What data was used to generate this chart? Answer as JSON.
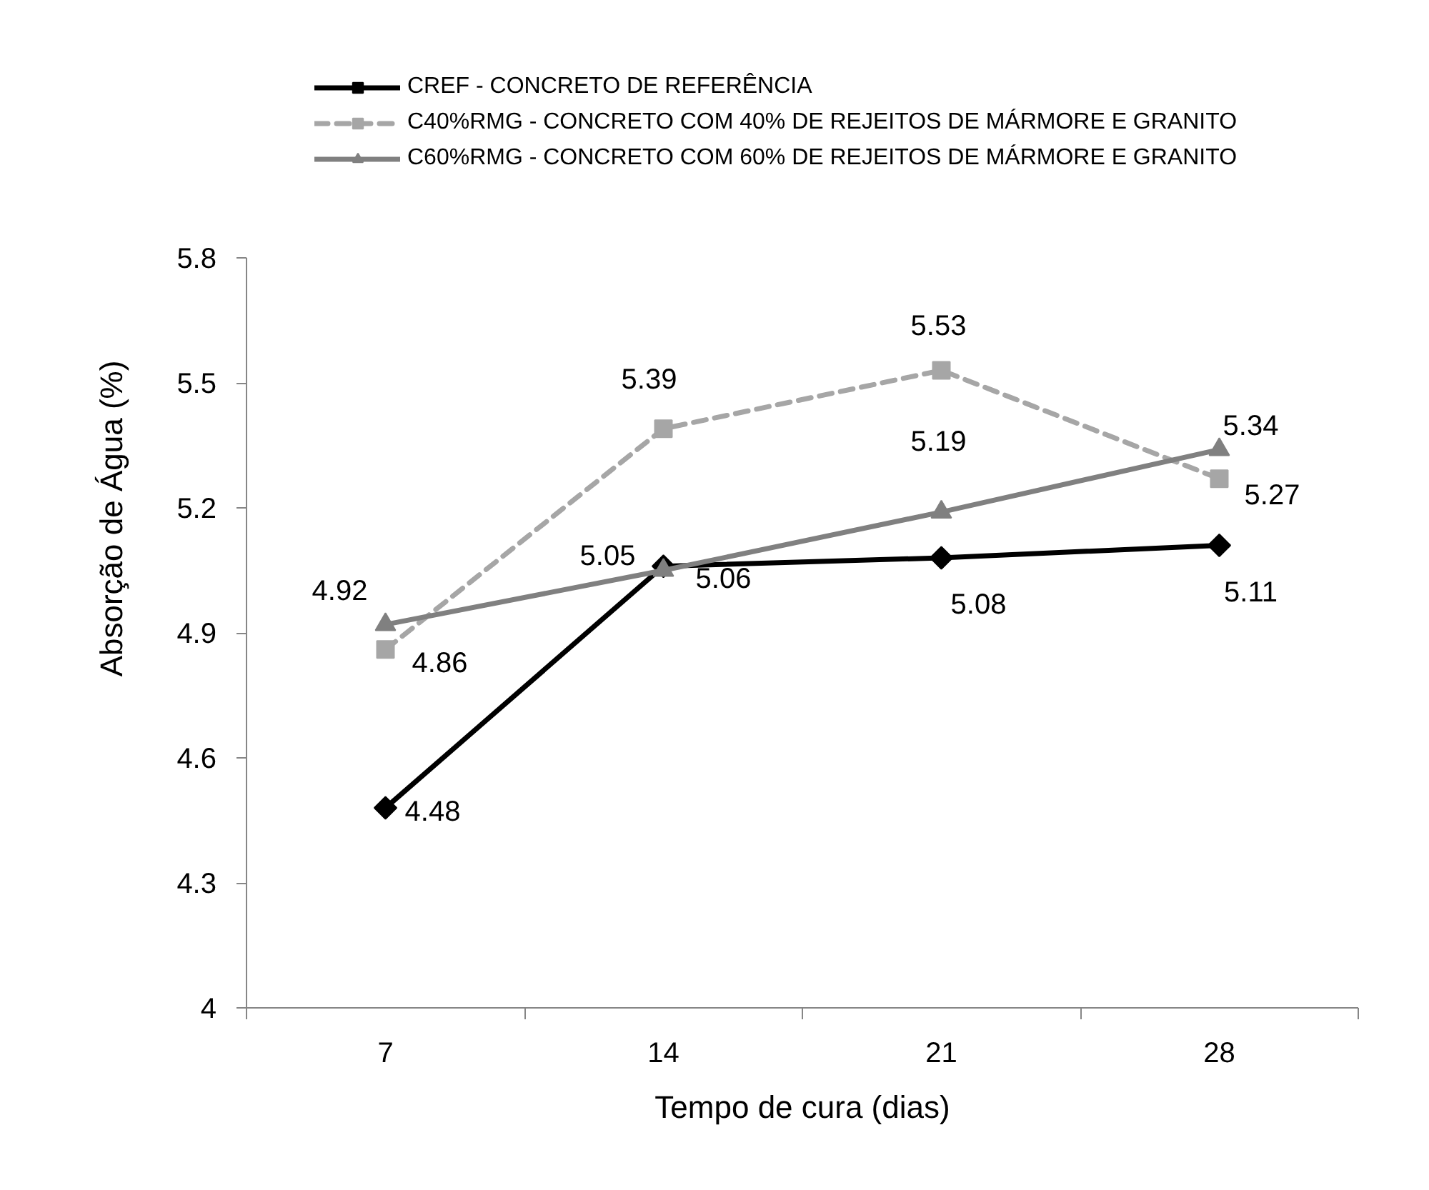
{
  "chart_data": {
    "type": "line",
    "xlabel": "Tempo de cura (dias)",
    "ylabel": "Absorção de Água (%)",
    "categories": [
      "7",
      "14",
      "21",
      "28"
    ],
    "ylim": [
      4,
      5.8
    ],
    "yticks": [
      4,
      4.3,
      4.6,
      4.9,
      5.2,
      5.5,
      5.8
    ],
    "grid": false,
    "legend": "top",
    "data_labels": true,
    "series": [
      {
        "name": "CREF - CONCRETO DE REFERÊNCIA",
        "color": "#000000",
        "marker": "diamond",
        "line_style": "solid",
        "values": [
          4.48,
          5.06,
          5.08,
          5.11
        ]
      },
      {
        "name": "C40%RMG - CONCRETO COM 40% DE REJEITOS DE MÁRMORE E GRANITO",
        "color": "#a6a6a6",
        "marker": "square",
        "line_style": "dashed",
        "values": [
          4.86,
          5.39,
          5.53,
          5.27
        ]
      },
      {
        "name": "C60%RMG - CONCRETO COM 60% DE REJEITOS DE MÁRMORE E GRANITO",
        "color": "#808080",
        "marker": "triangle",
        "line_style": "solid",
        "values": [
          4.92,
          5.05,
          5.19,
          5.34
        ]
      }
    ]
  }
}
